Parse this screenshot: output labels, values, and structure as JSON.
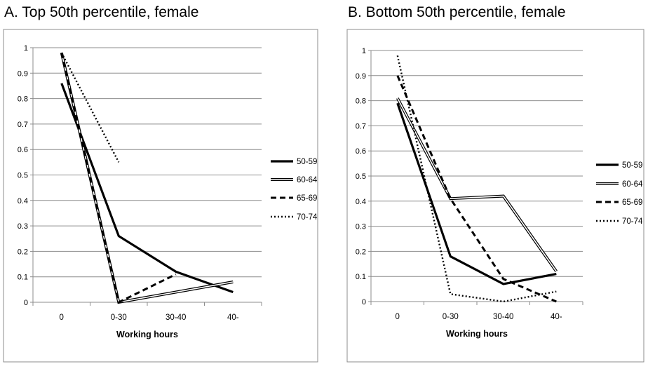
{
  "chart_data": [
    {
      "type": "line",
      "title": "A. Top 50th percentile, female",
      "xlabel": "Working hours",
      "ylabel": "",
      "categories": [
        "0",
        "0-30",
        "30-40",
        "40-"
      ],
      "ylim": [
        0,
        1
      ],
      "yticks": [
        "0",
        "0.1",
        "0.2",
        "0.3",
        "0.4",
        "0.5",
        "0.6",
        "0.7",
        "0.8",
        "0.9",
        "1"
      ],
      "grid": true,
      "legend_position": "right",
      "series": [
        {
          "name": "50-59",
          "style": "solid-thick",
          "values": [
            0.86,
            0.26,
            0.12,
            0.04
          ]
        },
        {
          "name": "60-64",
          "style": "double",
          "values": [
            0.98,
            0.0,
            0.04,
            0.08
          ]
        },
        {
          "name": "65-69",
          "style": "dashed",
          "values": [
            0.98,
            0.0,
            0.11,
            null
          ]
        },
        {
          "name": "70-74",
          "style": "dotted",
          "values": [
            0.98,
            0.55,
            null,
            null
          ]
        }
      ]
    },
    {
      "type": "line",
      "title": "B. Bottom 50th percentile, female",
      "xlabel": "Working hours",
      "ylabel": "",
      "categories": [
        "0",
        "0-30",
        "30-40",
        "40-"
      ],
      "ylim": [
        0,
        1
      ],
      "yticks": [
        "0",
        "0.1",
        "0.2",
        "0.3",
        "0.4",
        "0.5",
        "0.6",
        "0.7",
        "0.8",
        "0.9",
        "1"
      ],
      "grid": true,
      "legend_position": "right",
      "series": [
        {
          "name": "50-59",
          "style": "solid-thick",
          "values": [
            0.79,
            0.18,
            0.07,
            0.11
          ]
        },
        {
          "name": "60-64",
          "style": "double",
          "values": [
            0.81,
            0.41,
            0.42,
            0.12
          ]
        },
        {
          "name": "65-69",
          "style": "dashed",
          "values": [
            0.9,
            0.41,
            0.09,
            0.0
          ]
        },
        {
          "name": "70-74",
          "style": "dotted",
          "values": [
            0.98,
            0.03,
            0.0,
            0.04
          ]
        }
      ]
    }
  ]
}
